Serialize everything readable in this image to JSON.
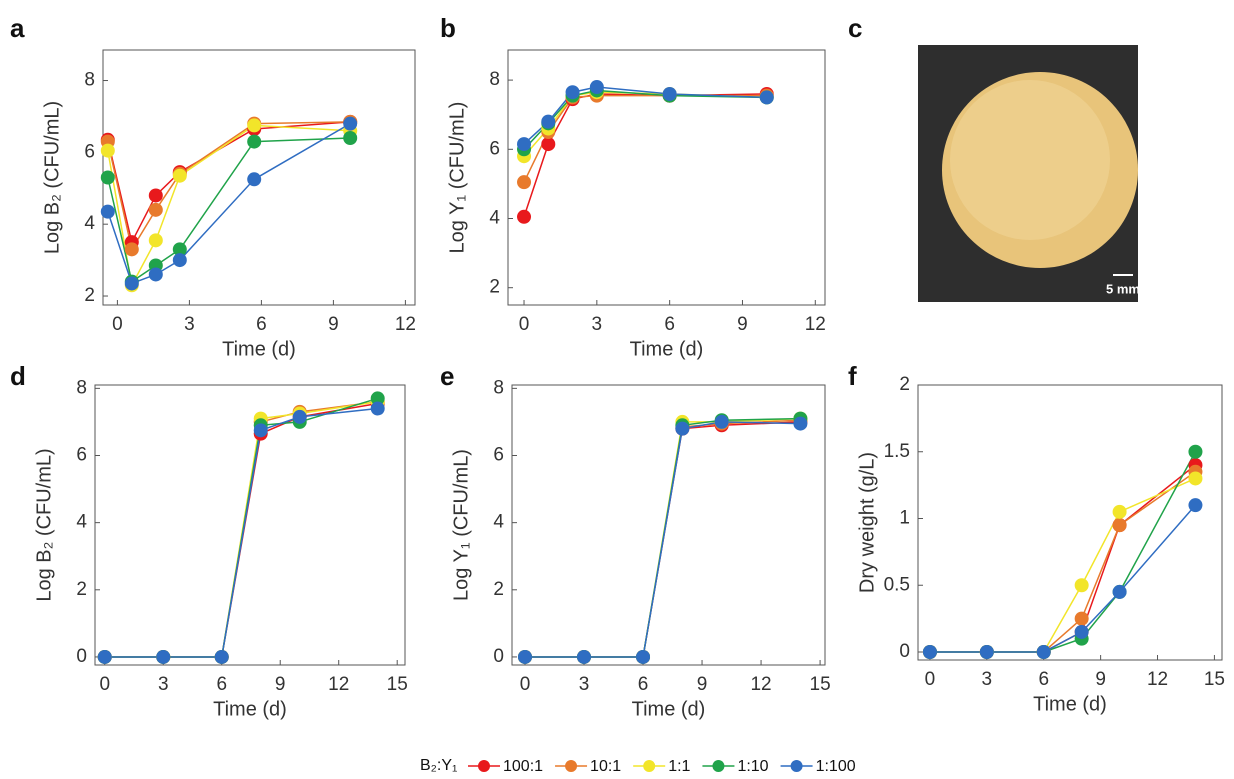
{
  "chart_data": [
    {
      "type": "line",
      "label": "a",
      "xlabel": "Time (d)",
      "ylabel": "Log B₂ (CFU/mL)",
      "x": [
        -0.4,
        0.6,
        1.6,
        2.6,
        5.7,
        9.7
      ],
      "xlim": [
        -0.6,
        12.4
      ],
      "xticks": [
        0,
        3,
        6,
        9,
        12
      ],
      "ylim": [
        1.75,
        8.85
      ],
      "yticks": [
        2,
        4,
        6,
        8
      ],
      "series": [
        {
          "name": "100:1",
          "color": "#e8191c",
          "values": [
            6.35,
            3.5,
            4.8,
            5.45,
            6.65,
            6.85
          ]
        },
        {
          "name": "10:1",
          "color": "#e87a2c",
          "values": [
            6.3,
            3.3,
            4.4,
            5.4,
            6.8,
            6.85
          ]
        },
        {
          "name": "1:1",
          "color": "#f2e52a",
          "values": [
            6.05,
            2.3,
            3.55,
            5.35,
            6.75,
            6.6
          ]
        },
        {
          "name": "1:10",
          "color": "#20a34a",
          "values": [
            5.3,
            2.4,
            2.85,
            3.3,
            6.3,
            6.4
          ]
        },
        {
          "name": "1:100",
          "color": "#2f6dc2",
          "values": [
            4.35,
            2.35,
            2.6,
            3.0,
            5.25,
            6.8
          ]
        }
      ]
    },
    {
      "type": "line",
      "label": "b",
      "xlabel": "Time (d)",
      "ylabel": "Log Y₁ (CFU/mL)",
      "x": [
        0,
        1,
        2,
        3,
        6,
        10
      ],
      "xlim": [
        -0.66,
        12.4
      ],
      "xticks": [
        0,
        3,
        6,
        9,
        12
      ],
      "ylim": [
        1.5,
        8.87
      ],
      "yticks": [
        2,
        4,
        6,
        8
      ],
      "series": [
        {
          "name": "100:1",
          "color": "#e8191c",
          "values": [
            4.05,
            6.15,
            7.45,
            7.6,
            7.55,
            7.6
          ]
        },
        {
          "name": "10:1",
          "color": "#e87a2c",
          "values": [
            5.05,
            6.5,
            7.5,
            7.55,
            7.55,
            7.55
          ]
        },
        {
          "name": "1:1",
          "color": "#f2e52a",
          "values": [
            5.8,
            6.6,
            7.55,
            7.65,
            7.6,
            7.5
          ]
        },
        {
          "name": "1:10",
          "color": "#20a34a",
          "values": [
            6.0,
            6.75,
            7.55,
            7.7,
            7.55,
            7.5
          ]
        },
        {
          "name": "1:100",
          "color": "#2f6dc2",
          "values": [
            6.15,
            6.8,
            7.65,
            7.8,
            7.6,
            7.5
          ]
        }
      ]
    },
    {
      "type": "line",
      "label": "d",
      "xlabel": "Time (d)",
      "ylabel": "Log B₂ (CFU/mL)",
      "x": [
        0,
        3,
        6,
        8,
        10,
        14
      ],
      "xlim": [
        -0.5,
        15.4
      ],
      "xticks": [
        0,
        3,
        6,
        9,
        12,
        15
      ],
      "ylim": [
        -0.24,
        8.1
      ],
      "yticks": [
        0,
        2,
        4,
        6,
        8
      ],
      "series": [
        {
          "name": "100:1",
          "color": "#e8191c",
          "values": [
            0,
            0,
            0,
            6.65,
            7.15,
            7.55
          ]
        },
        {
          "name": "10:1",
          "color": "#e87a2c",
          "values": [
            0,
            0,
            0,
            7.0,
            7.3,
            7.6
          ]
        },
        {
          "name": "1:1",
          "color": "#f2e52a",
          "values": [
            0,
            0,
            0,
            7.1,
            7.25,
            7.6
          ]
        },
        {
          "name": "1:10",
          "color": "#20a34a",
          "values": [
            0,
            0,
            0,
            6.9,
            7.0,
            7.7
          ]
        },
        {
          "name": "1:100",
          "color": "#2f6dc2",
          "values": [
            0,
            0,
            0,
            6.75,
            7.15,
            7.4
          ]
        }
      ]
    },
    {
      "type": "line",
      "label": "e",
      "xlabel": "Time (d)",
      "ylabel": "Log Y₁ (CFU/mL)",
      "x": [
        0,
        3,
        6,
        8,
        10,
        14
      ],
      "xlim": [
        -0.66,
        15.25
      ],
      "xticks": [
        0,
        3,
        6,
        9,
        12,
        15
      ],
      "ylim": [
        -0.24,
        8.1
      ],
      "yticks": [
        0,
        2,
        4,
        6,
        8
      ],
      "series": [
        {
          "name": "100:1",
          "color": "#e8191c",
          "values": [
            0,
            0,
            0,
            6.8,
            6.9,
            7.0
          ]
        },
        {
          "name": "10:1",
          "color": "#e87a2c",
          "values": [
            0,
            0,
            0,
            6.85,
            6.95,
            7.05
          ]
        },
        {
          "name": "1:1",
          "color": "#f2e52a",
          "values": [
            0,
            0,
            0,
            7.0,
            7.0,
            7.1
          ]
        },
        {
          "name": "1:10",
          "color": "#20a34a",
          "values": [
            0,
            0,
            0,
            6.9,
            7.05,
            7.1
          ]
        },
        {
          "name": "1:100",
          "color": "#2f6dc2",
          "values": [
            0,
            0,
            0,
            6.8,
            7.0,
            6.95
          ]
        }
      ]
    },
    {
      "type": "line",
      "label": "f",
      "xlabel": "Time (d)",
      "ylabel": "Dry weight (g/L)",
      "x": [
        0,
        3,
        6,
        8,
        10,
        14
      ],
      "xlim": [
        -0.63,
        15.4
      ],
      "xticks": [
        0,
        3,
        6,
        9,
        12,
        15
      ],
      "ylim": [
        -0.06,
        2.0
      ],
      "yticks": [
        0,
        0.5,
        1,
        1.5,
        2
      ],
      "series": [
        {
          "name": "100:1",
          "color": "#e8191c",
          "values": [
            0,
            0,
            0,
            0.15,
            0.95,
            1.4
          ]
        },
        {
          "name": "10:1",
          "color": "#e87a2c",
          "values": [
            0,
            0,
            0,
            0.25,
            0.95,
            1.35
          ]
        },
        {
          "name": "1:1",
          "color": "#f2e52a",
          "values": [
            0,
            0,
            0,
            0.5,
            1.05,
            1.3
          ]
        },
        {
          "name": "1:10",
          "color": "#20a34a",
          "values": [
            0,
            0,
            0,
            0.1,
            0.45,
            1.5
          ]
        },
        {
          "name": "1:100",
          "color": "#2f6dc2",
          "values": [
            0,
            0,
            0,
            0.15,
            0.45,
            1.1
          ]
        }
      ]
    }
  ],
  "photo": {
    "label": "c",
    "scale_bar": "5 mm"
  },
  "legend": {
    "title": "B₂:Y₁"
  }
}
